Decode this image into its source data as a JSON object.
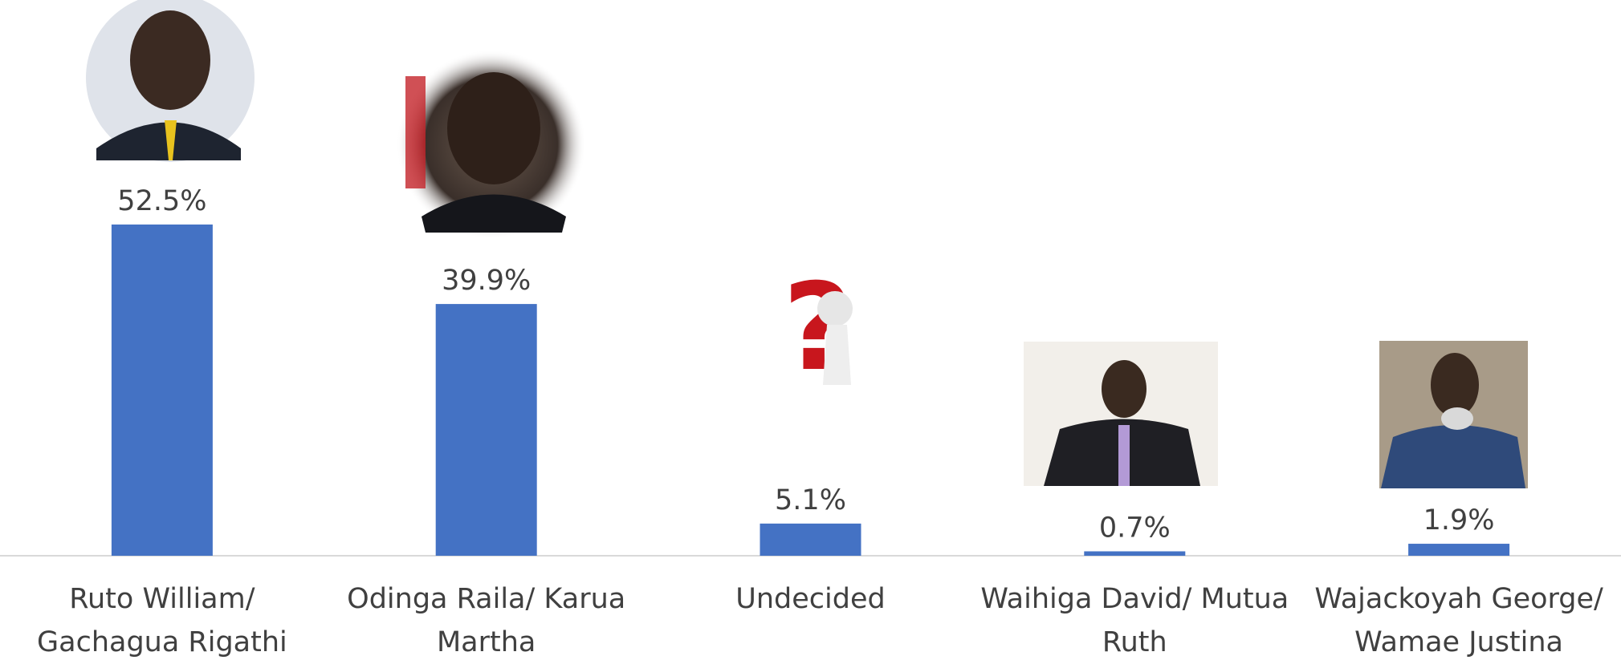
{
  "chart_data": {
    "type": "bar",
    "categories": [
      "Ruto William/ Gachagua Rigathi",
      "Odinga Raila/ Karua Martha",
      "Undecided",
      "Waihiga David/ Mutua Ruth",
      "Wajackoyah George/ Wamae Justina"
    ],
    "values": [
      52.5,
      39.9,
      5.1,
      0.7,
      1.9
    ],
    "value_labels": [
      "52.5%",
      "39.9%",
      "5.1%",
      "0.7%",
      "1.9%"
    ],
    "color": "#4472c4"
  }
}
